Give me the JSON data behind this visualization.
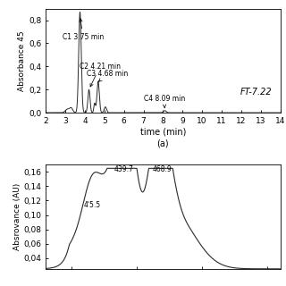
{
  "panel_a": {
    "title_label": "FT-7.22",
    "xlabel": "time (min)",
    "ylabel": "Absorbance 45",
    "xlim": [
      2,
      14
    ],
    "ylim": [
      0.0,
      0.9
    ],
    "yticks": [
      0.0,
      0.2,
      0.4,
      0.6,
      0.8
    ],
    "ytick_labels": [
      "0,0",
      "0,2",
      "0,4",
      "0,6",
      "0,8"
    ],
    "xticks": [
      2,
      3,
      4,
      5,
      6,
      7,
      8,
      9,
      10,
      11,
      12,
      13,
      14
    ],
    "subfig_label": "(a)"
  },
  "panel_b": {
    "ylabel": "Absrovance (AU)",
    "ylim": [
      0.025,
      0.17
    ],
    "yticks": [
      0.04,
      0.06,
      0.08,
      0.1,
      0.12,
      0.14,
      0.16
    ],
    "ytick_labels": [
      "0,04",
      "0,06",
      "0,08",
      "0,10",
      "0,12",
      "0,14",
      "0,16"
    ]
  },
  "line_color": "#2a2a2a",
  "bg_color": "#ffffff",
  "font_size": 6.5
}
